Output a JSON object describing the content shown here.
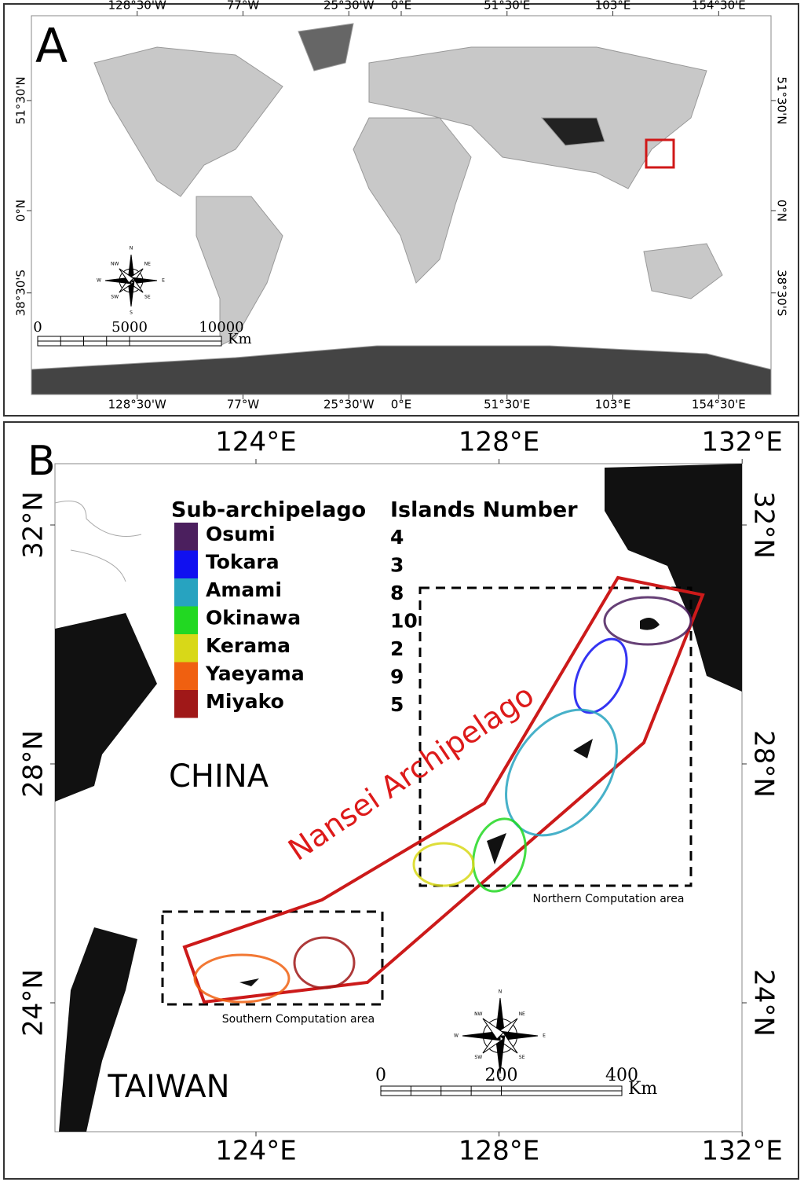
{
  "panel_a": {
    "label": "A",
    "lon_ticks": [
      {
        "value": -128.5,
        "label": "128°30'W"
      },
      {
        "value": -77,
        "label": "77°W"
      },
      {
        "value": -25.5,
        "label": "25°30'W"
      },
      {
        "value": 0,
        "label": "0°E"
      },
      {
        "value": 51.5,
        "label": "51°30'E"
      },
      {
        "value": 103,
        "label": "103°E"
      },
      {
        "value": 154.5,
        "label": "154°30'E"
      }
    ],
    "lat_ticks": [
      {
        "value": 51.5,
        "label": "51°30'N"
      },
      {
        "value": 0,
        "label": "0°N"
      },
      {
        "value": -38.5,
        "label": "38°30'S"
      }
    ],
    "scale_bar": {
      "ticks": [
        0,
        5000,
        10000
      ],
      "unit": "Km"
    },
    "compass": [
      "N",
      "NE",
      "E",
      "SE",
      "S",
      "SW",
      "W",
      "NW"
    ]
  },
  "panel_b": {
    "label": "B",
    "lon_ticks": [
      {
        "value": 124,
        "label": "124°E"
      },
      {
        "value": 128,
        "label": "128°E"
      },
      {
        "value": 132,
        "label": "132°E"
      }
    ],
    "lat_ticks": [
      {
        "value": 32,
        "label": "32°N"
      },
      {
        "value": 28,
        "label": "28°N"
      },
      {
        "value": 24,
        "label": "24°N"
      }
    ],
    "legend": {
      "headers": [
        "Sub-archipelago",
        "Islands Number"
      ],
      "rows": [
        {
          "name": "Osumi",
          "islands": 4,
          "color": "#4b1f5e"
        },
        {
          "name": "Tokara",
          "islands": 3,
          "color": "#1010f0"
        },
        {
          "name": "Amami",
          "islands": 8,
          "color": "#27a3c0"
        },
        {
          "name": "Okinawa",
          "islands": 10,
          "color": "#22d822"
        },
        {
          "name": "Kerama",
          "islands": 2,
          "color": "#d8d818"
        },
        {
          "name": "Yaeyama",
          "islands": 9,
          "color": "#f06010"
        },
        {
          "name": "Miyako",
          "islands": 5,
          "color": "#a01818"
        }
      ]
    },
    "labels": {
      "china": "CHINA",
      "taiwan": "TAIWAN",
      "archipelago": "Nansei Archipelago",
      "northern_area": "Northern Computation area",
      "southern_area": "Southern Computation area"
    },
    "scale_bar": {
      "ticks": [
        0,
        200,
        400
      ],
      "unit": "Km"
    },
    "compass": [
      "N",
      "NE",
      "E",
      "SE",
      "S",
      "SW",
      "W",
      "NW"
    ]
  }
}
